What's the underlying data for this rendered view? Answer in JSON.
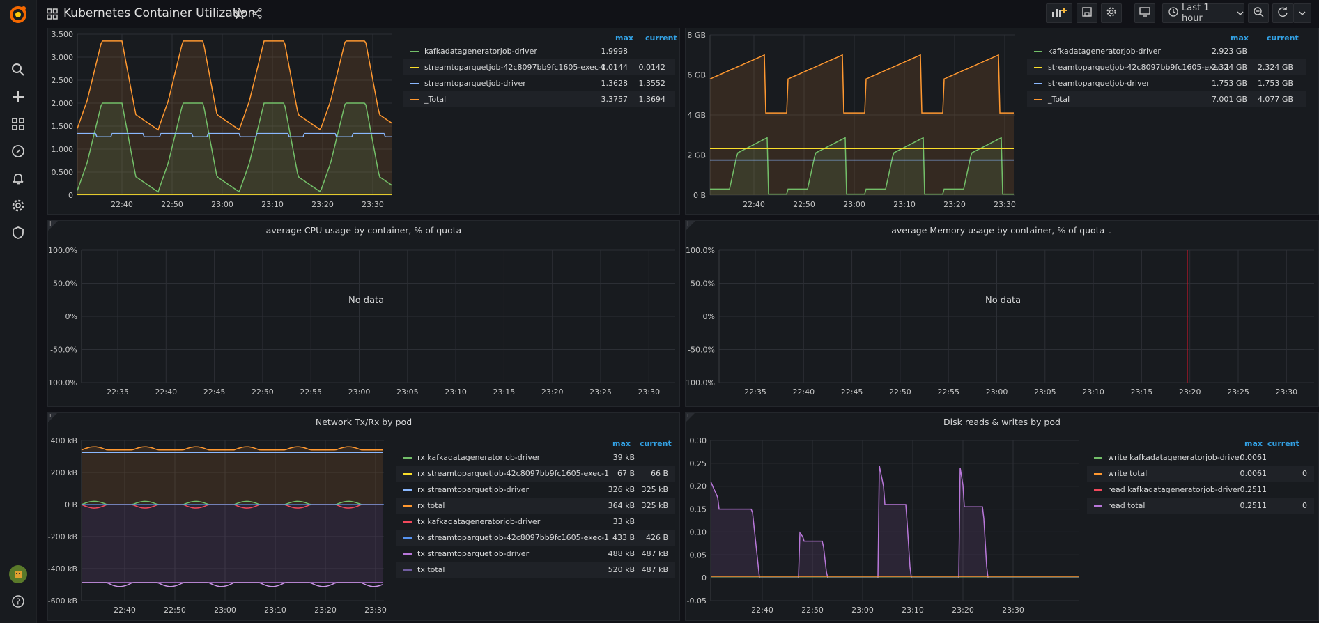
{
  "header": {
    "title": "Kubernetes Container Utilization",
    "time_range": "Last 1 hour"
  },
  "icons": {
    "logo": "grafana-logo-icon",
    "dashboards_grid": "dashboard-grid-icon",
    "star": "star-icon",
    "share": "share-icon",
    "add_panel": "add-panel-icon",
    "save": "save-icon",
    "settings": "gear-icon",
    "tv": "tv-mode-icon",
    "clock": "clock-icon",
    "zoom_out": "zoom-out-icon",
    "refresh": "refresh-icon",
    "chevron": "chevron-down-icon",
    "sidebar": [
      "search-icon",
      "plus-icon",
      "dashboards-icon",
      "explore-compass-icon",
      "alerting-bell-icon",
      "configuration-gear-icon",
      "server-admin-shield-icon"
    ],
    "avatar": "user-avatar-icon",
    "help": "help-icon"
  },
  "colors": {
    "green": "#73bf69",
    "yellow": "#fade2a",
    "cyan": "#8ab8ff",
    "orange": "#ff9830",
    "red": "#f2495c",
    "blue": "#5794f2",
    "magenta": "#b877d9",
    "purple": "#ca95e5"
  },
  "panels": {
    "cpu": {
      "title": "",
      "legend_headers": {
        "max": "max",
        "current": "current"
      },
      "legend": [
        {
          "name": "kafkadatageneratorjob-driver",
          "max": "1.9998",
          "current": "",
          "color": "#73bf69"
        },
        {
          "name": "streamtoparquetjob-42c8097bb9fc1605-exec-1",
          "max": "0.0144",
          "current": "0.0142",
          "color": "#fade2a"
        },
        {
          "name": "streamtoparquetjob-driver",
          "max": "1.3628",
          "current": "1.3552",
          "color": "#8ab8ff"
        },
        {
          "name": "_Total",
          "max": "3.3757",
          "current": "1.3694",
          "color": "#ff9830"
        }
      ],
      "yticks": [
        "3.500",
        "3.000",
        "2.500",
        "2.000",
        "1.500",
        "1.000",
        "0.500",
        "0"
      ],
      "xticks": [
        "22:40",
        "22:50",
        "23:00",
        "23:10",
        "23:20",
        "23:30"
      ]
    },
    "memory": {
      "title": "",
      "legend_headers": {
        "max": "max",
        "current": "current"
      },
      "legend": [
        {
          "name": "kafkadatageneratorjob-driver",
          "max": "2.923 GB",
          "current": "",
          "color": "#73bf69"
        },
        {
          "name": "streamtoparquetjob-42c8097bb9fc1605-exec-1",
          "max": "2.324 GB",
          "current": "2.324 GB",
          "color": "#fade2a"
        },
        {
          "name": "streamtoparquetjob-driver",
          "max": "1.753 GB",
          "current": "1.753 GB",
          "color": "#8ab8ff"
        },
        {
          "name": "_Total",
          "max": "7.001 GB",
          "current": "4.077 GB",
          "color": "#ff9830"
        }
      ],
      "yticks": [
        "8 GB",
        "6 GB",
        "4 GB",
        "2 GB",
        "0 B"
      ],
      "xticks": [
        "22:40",
        "22:50",
        "23:00",
        "23:10",
        "23:20",
        "23:30"
      ]
    },
    "cpu_quota": {
      "title": "average CPU usage by container, % of quota",
      "no_data": "No data",
      "yticks": [
        "100.0%",
        "50.0%",
        "0%",
        "-50.0%",
        "-100.0%"
      ],
      "xticks": [
        "22:35",
        "22:40",
        "22:45",
        "22:50",
        "22:55",
        "23:00",
        "23:05",
        "23:10",
        "23:15",
        "23:20",
        "23:25",
        "23:30"
      ]
    },
    "mem_quota": {
      "title": "average Memory usage by container, % of quota",
      "no_data": "No data",
      "yticks": [
        "100.0%",
        "50.0%",
        "0%",
        "-50.0%",
        "-100.0%"
      ],
      "xticks": [
        "22:35",
        "22:40",
        "22:45",
        "22:50",
        "22:55",
        "23:00",
        "23:05",
        "23:10",
        "23:15",
        "23:20",
        "23:25",
        "23:30"
      ]
    },
    "network": {
      "title": "Network Tx/Rx by pod",
      "legend_headers": {
        "max": "max",
        "current": "current"
      },
      "legend": [
        {
          "name": "rx kafkadatageneratorjob-driver",
          "max": "39 kB",
          "current": "",
          "color": "#73bf69"
        },
        {
          "name": "rx streamtoparquetjob-42c8097bb9fc1605-exec-1",
          "max": "67 B",
          "current": "66 B",
          "color": "#fade2a"
        },
        {
          "name": "rx streamtoparquetjob-driver",
          "max": "326 kB",
          "current": "325 kB",
          "color": "#8ab8ff"
        },
        {
          "name": "rx total",
          "max": "364 kB",
          "current": "325 kB",
          "color": "#ff9830"
        },
        {
          "name": "tx kafkadatageneratorjob-driver",
          "max": "33 kB",
          "current": "",
          "color": "#f2495c"
        },
        {
          "name": "tx streamtoparquetjob-42c8097bb9fc1605-exec-1",
          "max": "433 B",
          "current": "426 B",
          "color": "#5794f2"
        },
        {
          "name": "tx streamtoparquetjob-driver",
          "max": "488 kB",
          "current": "487 kB",
          "color": "#b877d9"
        },
        {
          "name": "tx total",
          "max": "520 kB",
          "current": "487 kB",
          "color": "#705da0"
        }
      ],
      "yticks": [
        "400 kB",
        "200 kB",
        "0 B",
        "-200 kB",
        "-400 kB",
        "-600 kB"
      ],
      "xticks": [
        "22:40",
        "22:50",
        "23:00",
        "23:10",
        "23:20",
        "23:30"
      ]
    },
    "disk": {
      "title": "Disk reads & writes by pod",
      "legend_headers": {
        "max": "max",
        "current": "current"
      },
      "legend": [
        {
          "name": "write kafkadatageneratorjob-driver",
          "max": "0.0061",
          "current": "",
          "color": "#73bf69"
        },
        {
          "name": "write total",
          "max": "0.0061",
          "current": "0",
          "color": "#ff9830"
        },
        {
          "name": "read kafkadatageneratorjob-driver",
          "max": "0.2511",
          "current": "",
          "color": "#f2495c"
        },
        {
          "name": "read total",
          "max": "0.2511",
          "current": "0",
          "color": "#b877d9"
        }
      ],
      "yticks": [
        "0.30",
        "0.25",
        "0.20",
        "0.15",
        "0.10",
        "0.05",
        "0",
        "-0.05"
      ],
      "xticks": [
        "22:40",
        "22:50",
        "23:00",
        "23:10",
        "23:20",
        "23:30"
      ]
    }
  }
}
